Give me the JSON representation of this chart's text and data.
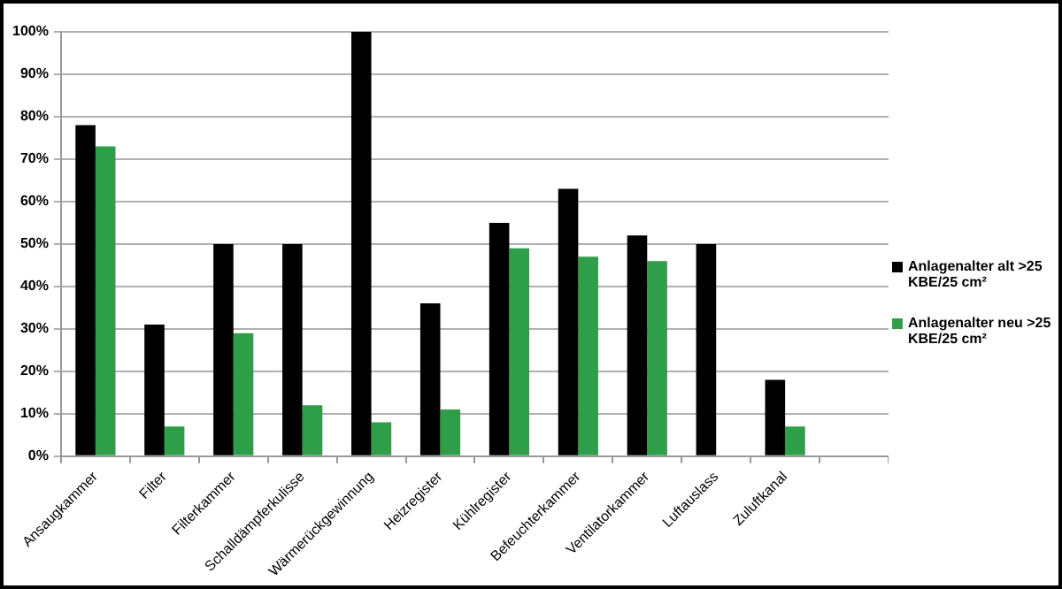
{
  "chart_data": {
    "type": "bar",
    "categories": [
      "Ansaugkammer",
      "Filter",
      "Filterkammer",
      "Schalldämpferkulisse",
      "Wärmerückgewinnung",
      "Heizregister",
      "Kühlregister",
      "Befeuchterkammer",
      "Ventilatorkammer",
      "Luftauslass",
      "Zuluftkanal",
      null
    ],
    "series": [
      {
        "name": "Anlagenalter alt >25 KBE/25 cm²",
        "color": "#000000",
        "values": [
          78,
          31,
          50,
          50,
          100,
          36,
          55,
          63,
          52,
          50,
          18,
          null
        ]
      },
      {
        "name": "Anlagenalter neu >25 KBE/25 cm²",
        "color": "#2e9e48",
        "values": [
          73,
          7,
          29,
          12,
          8,
          11,
          49,
          47,
          46,
          null,
          7,
          null
        ]
      }
    ],
    "ylim": [
      0,
      100
    ],
    "yticks": [
      {
        "value": 0,
        "label": "0%"
      },
      {
        "value": 10,
        "label": "10%"
      },
      {
        "value": 20,
        "label": "20%"
      },
      {
        "value": 30,
        "label": "30%"
      },
      {
        "value": 40,
        "label": "40%"
      },
      {
        "value": 50,
        "label": "50%"
      },
      {
        "value": 60,
        "label": "60%"
      },
      {
        "value": 70,
        "label": "70%"
      },
      {
        "value": 80,
        "label": "80%"
      },
      {
        "value": 90,
        "label": "90%"
      },
      {
        "value": 100,
        "label": "100%"
      }
    ],
    "grid": "y",
    "legend": "right"
  }
}
